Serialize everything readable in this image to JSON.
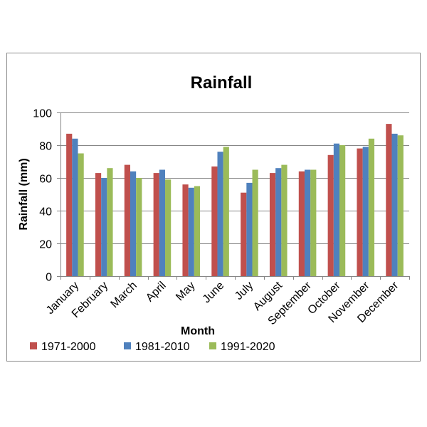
{
  "chart_data": {
    "type": "bar",
    "title": "Rainfall",
    "xlabel": "Month",
    "ylabel": "Rainfall (mm)",
    "ylim": [
      0,
      100
    ],
    "yticks": [
      0,
      20,
      40,
      60,
      80,
      100
    ],
    "grid": true,
    "legend_position": "bottom-left",
    "categories": [
      "January",
      "February",
      "March",
      "April",
      "May",
      "June",
      "July",
      "August",
      "September",
      "October",
      "November",
      "December"
    ],
    "series": [
      {
        "name": "1971-2000",
        "color": "#c0504d",
        "values": [
          87,
          63,
          68,
          63,
          56,
          67,
          51,
          63,
          64,
          74,
          78,
          93
        ]
      },
      {
        "name": "1981-2010",
        "color": "#4f81bd",
        "values": [
          84,
          60,
          64,
          65,
          54,
          76,
          57,
          66,
          65,
          81,
          79,
          87
        ]
      },
      {
        "name": "1991-2020",
        "color": "#9bbb59",
        "values": [
          75,
          66,
          60,
          59,
          55,
          79,
          65,
          68,
          65,
          80,
          84,
          86
        ]
      }
    ]
  }
}
